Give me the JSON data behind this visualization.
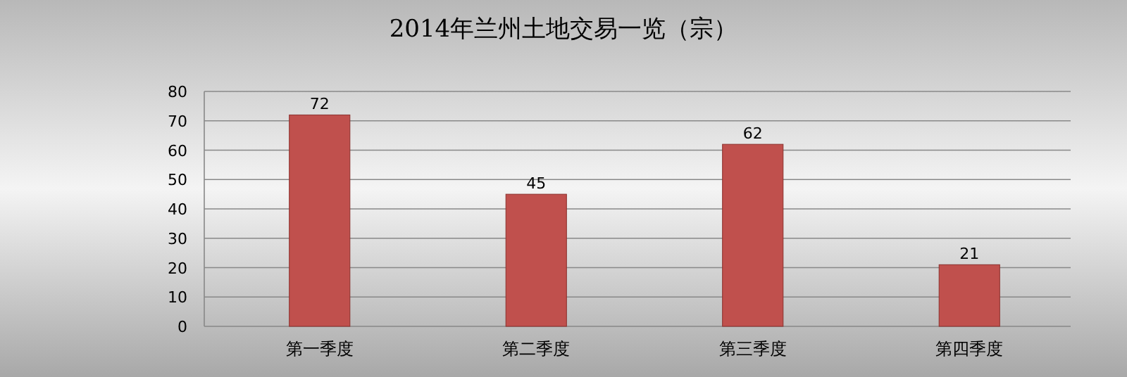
{
  "chart_data": {
    "type": "bar",
    "title": "2014年兰州土地交易一览（宗）",
    "categories": [
      "第一季度",
      "第二季度",
      "第三季度",
      "第四季度"
    ],
    "values": [
      72,
      45,
      62,
      21
    ],
    "color": "#c0504d",
    "ylim": [
      0,
      80
    ],
    "yticks": [
      0,
      10,
      20,
      30,
      40,
      50,
      60,
      70,
      80
    ],
    "grid": "y",
    "data_labels": true
  }
}
